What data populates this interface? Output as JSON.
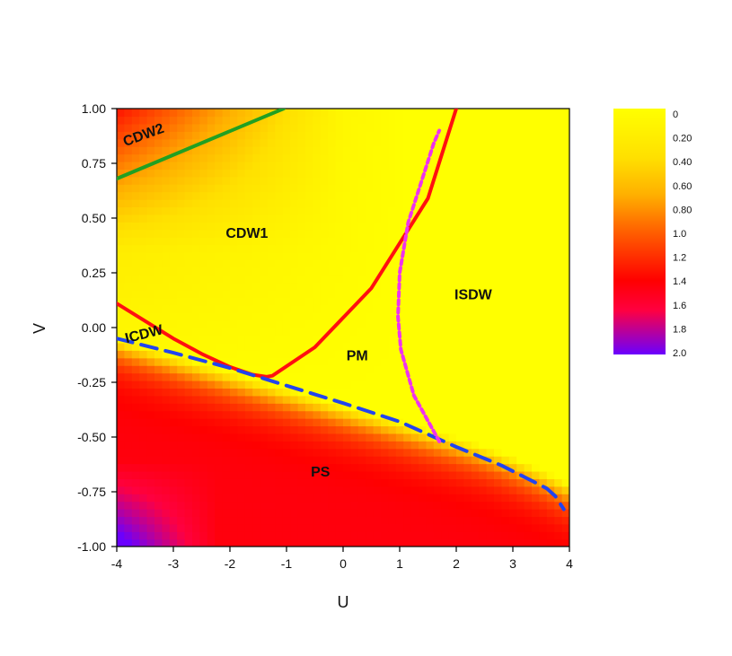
{
  "chart_data": {
    "type": "heatmap",
    "xlabel": "U",
    "ylabel": "V",
    "xlim": [
      -4,
      4
    ],
    "ylim": [
      -1,
      1
    ],
    "x_ticks": [
      "-4",
      "-3",
      "-2",
      "-1",
      "0",
      "1",
      "2",
      "3",
      "4"
    ],
    "y_ticks": [
      "1.00",
      "0.75",
      "0.50",
      "0.25",
      "0.00",
      "-0.25",
      "-0.50",
      "-0.75",
      "-1.00"
    ],
    "colorbar": {
      "range": [
        0,
        2.0
      ],
      "tick_labels": [
        "0",
        "0.20",
        "0.40",
        "0.60",
        "0.80",
        "1.0",
        "1.2",
        "1.4",
        "1.6",
        "1.8",
        "2.0"
      ],
      "colors": [
        "#ffff00",
        "#ffb000",
        "#ff0000",
        "#6a00ff"
      ]
    },
    "regions": [
      {
        "name": "CDW2",
        "x": -3.5,
        "y": 0.86
      },
      {
        "name": "CDW1",
        "x": -1.7,
        "y": 0.41
      },
      {
        "name": "ICDW",
        "x": -3.5,
        "y": -0.05
      },
      {
        "name": "PM",
        "x": 0.25,
        "y": -0.15
      },
      {
        "name": "ISDW",
        "x": 2.3,
        "y": 0.13
      },
      {
        "name": "PS",
        "x": -0.4,
        "y": -0.68
      }
    ],
    "series": [
      {
        "name": "CDW2",
        "color": "#22a022",
        "style": "solid",
        "x": [
          -4.0,
          -1.05
        ],
        "y": [
          0.68,
          1.0
        ]
      },
      {
        "name": "CDW1",
        "color": "#ff1010",
        "style": "solid",
        "x": [
          -4.0,
          -3.5,
          -3.0,
          -2.5,
          -2.0,
          -1.6,
          -1.35,
          -1.25,
          -0.5,
          0.5,
          1.5,
          2.0
        ],
        "y": [
          0.11,
          0.03,
          -0.05,
          -0.12,
          -0.18,
          -0.215,
          -0.225,
          -0.22,
          -0.09,
          0.18,
          0.59,
          1.0
        ]
      },
      {
        "name": "ICDW",
        "color": "#2244ee",
        "style": "dashed",
        "x": [
          -4.0,
          -3.0,
          -2.0,
          -1.0,
          0.0,
          1.0,
          2.0,
          2.8,
          3.3,
          3.6,
          3.75,
          3.9
        ],
        "y": [
          -0.05,
          -0.115,
          -0.185,
          -0.265,
          -0.345,
          -0.43,
          -0.545,
          -0.63,
          -0.695,
          -0.735,
          -0.77,
          -0.83
        ]
      },
      {
        "name": "ISDW",
        "color": "#ee33ee",
        "style": "dotted",
        "x": [
          1.7,
          1.25,
          1.02,
          0.97,
          1.0,
          1.15,
          1.45,
          1.6,
          1.7
        ],
        "y": [
          -0.52,
          -0.31,
          -0.1,
          0.05,
          0.25,
          0.48,
          0.72,
          0.84,
          0.9
        ]
      }
    ]
  }
}
